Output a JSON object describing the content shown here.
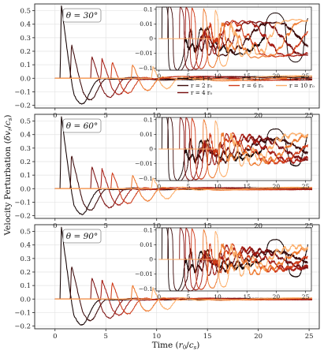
{
  "colors": {
    "r1": "#120000",
    "r2": "#3d0a0a",
    "r4": "#7a1010",
    "r5": "#a51c14",
    "r6": "#cf3a18",
    "r8": "#ee7a30",
    "r10": "#fcae6a",
    "grid": "#e3e3e3"
  },
  "chart_data": {
    "type": "line",
    "ylabel": "Velocity Perturbation (δv_r/c_s)",
    "xlabel": "Time (r_0/c_s)",
    "legend": {
      "placement": "top-panel-right",
      "entries": [
        {
          "key": "r1",
          "label": "r = 1 r₀"
        },
        {
          "key": "r2",
          "label": "r = 2 r₀"
        },
        {
          "key": "r4",
          "label": "r = 4 r₀"
        },
        {
          "key": "r5",
          "label": "r = 5 r₀"
        },
        {
          "key": "r6",
          "label": "r = 6 r₀"
        },
        {
          "key": "r8",
          "label": "r = 8 r₀"
        },
        {
          "key": "r10",
          "label": "r = 10 r₀"
        }
      ]
    },
    "main_axes": {
      "xlim": [
        -2,
        26
      ],
      "xticks": [
        0,
        5,
        10,
        15,
        20,
        25
      ],
      "xticklabels": [
        "0",
        "5",
        "10",
        "15",
        "20",
        "25"
      ],
      "ylim": [
        -0.22,
        0.55
      ],
      "yticks": [
        -0.2,
        -0.1,
        0.0,
        0.1,
        0.2,
        0.3,
        0.4,
        0.5
      ],
      "yticklabels": [
        "−0.2",
        "−0.1",
        "0.0",
        "0.1",
        "0.2",
        "0.3",
        "0.4",
        "0.5"
      ],
      "grid": true
    },
    "inset_axes": {
      "xlim": [
        -0.5,
        26
      ],
      "xticks": [
        0,
        5,
        10,
        15,
        20,
        25
      ],
      "xticklabels": [
        "0",
        "5",
        "10",
        "15",
        "20",
        "25"
      ],
      "ylim": [
        -0.14,
        0.14
      ],
      "yticks": [
        -0.1,
        -0.01,
        0,
        0.01,
        0.1
      ],
      "yticklabels": [
        "−0.1",
        "−0.01",
        "0",
        "0.01",
        "0.1"
      ],
      "scale": "symlog",
      "linthresh": 0.01,
      "grid": true
    },
    "panels": [
      {
        "theta_label": "θ = 30°",
        "theta_deg": 30,
        "late_amp": 0.018
      },
      {
        "theta_label": "θ = 60°",
        "theta_deg": 60,
        "late_amp": 0.01
      },
      {
        "theta_label": "θ = 90°",
        "theta_deg": 90,
        "late_amp": 0.008
      }
    ],
    "series": [
      {
        "key": "r1",
        "radius_r0": 1,
        "t_arrival": 0.5,
        "peak": 0.55,
        "trough": -0.19,
        "pulse_width": 2.5
      },
      {
        "key": "r2",
        "radius_r0": 2,
        "t_arrival": 1.5,
        "peak": 0.26,
        "trough": -0.16,
        "pulse_width": 2.3
      },
      {
        "key": "r4",
        "radius_r0": 4,
        "t_arrival": 3.5,
        "peak": 0.17,
        "trough": -0.14,
        "pulse_width": 2.2
      },
      {
        "key": "r5",
        "radius_r0": 5,
        "t_arrival": 4.5,
        "peak": 0.15,
        "trough": -0.12,
        "pulse_width": 2.1
      },
      {
        "key": "r6",
        "radius_r0": 6,
        "t_arrival": 5.5,
        "peak": 0.13,
        "trough": -0.11,
        "pulse_width": 2.0
      },
      {
        "key": "r8",
        "radius_r0": 8,
        "t_arrival": 7.5,
        "peak": 0.11,
        "trough": -0.09,
        "pulse_width": 1.9
      },
      {
        "key": "r10",
        "radius_r0": 10,
        "t_arrival": 9.5,
        "peak": 0.09,
        "trough": -0.075,
        "pulse_width": 1.8
      }
    ]
  }
}
